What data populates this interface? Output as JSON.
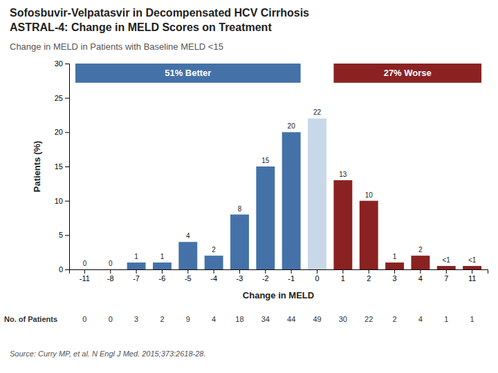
{
  "chart_data": {
    "type": "bar",
    "title": [
      "Sofosbuvir-Velpatasvir in Decompensated HCV Cirrhosis",
      "ASTRAL-4: Change in MELD Scores on Treatment"
    ],
    "subtitle": "Change in MELD in Patients with Baseline MELD <15",
    "categories": [
      "-11",
      "-8",
      "-7",
      "-6",
      "-5",
      "-4",
      "-3",
      "-2",
      "-1",
      "0",
      "1",
      "2",
      "3",
      "4",
      "7",
      "11"
    ],
    "values": [
      0,
      0,
      1,
      1,
      4,
      2,
      8,
      15,
      20,
      22,
      13,
      10,
      1,
      2,
      0.5,
      0.5
    ],
    "value_labels": [
      "0",
      "0",
      "1",
      "1",
      "4",
      "2",
      "8",
      "15",
      "20",
      "22",
      "13",
      "10",
      "1",
      "2",
      "<1",
      "<1"
    ],
    "data_labels": true,
    "colors": [
      "#4472a8",
      "#4472a8",
      "#4472a8",
      "#4472a8",
      "#4472a8",
      "#4472a8",
      "#4472a8",
      "#4472a8",
      "#4472a8",
      "#c9d8e8",
      "#8b2222",
      "#8b2222",
      "#8b2222",
      "#8b2222",
      "#8b2222",
      "#8b2222"
    ],
    "xlabel": "Change in MELD",
    "ylabel": "Patients (%)",
    "ylim": [
      0,
      30
    ],
    "yticks": [
      0,
      5,
      10,
      15,
      20,
      25,
      30
    ],
    "grid": false,
    "annotations": [
      {
        "text": "51% Better",
        "color": "#4472a8",
        "from": "-11",
        "to": "-1",
        "y": [
          27.2,
          30
        ]
      },
      {
        "text": "27% Worse",
        "color": "#8b2222",
        "from": "1",
        "to": "11",
        "y": [
          27.2,
          30
        ]
      },
      {
        "text": "Source: Curry MP, et al. N Engl J Med. 2015;373:2618-28."
      }
    ],
    "patients": {
      "label": "No. of Patients",
      "values": [
        0,
        0,
        3,
        2,
        9,
        4,
        18,
        34,
        44,
        49,
        30,
        22,
        2,
        4,
        1,
        1
      ]
    }
  }
}
